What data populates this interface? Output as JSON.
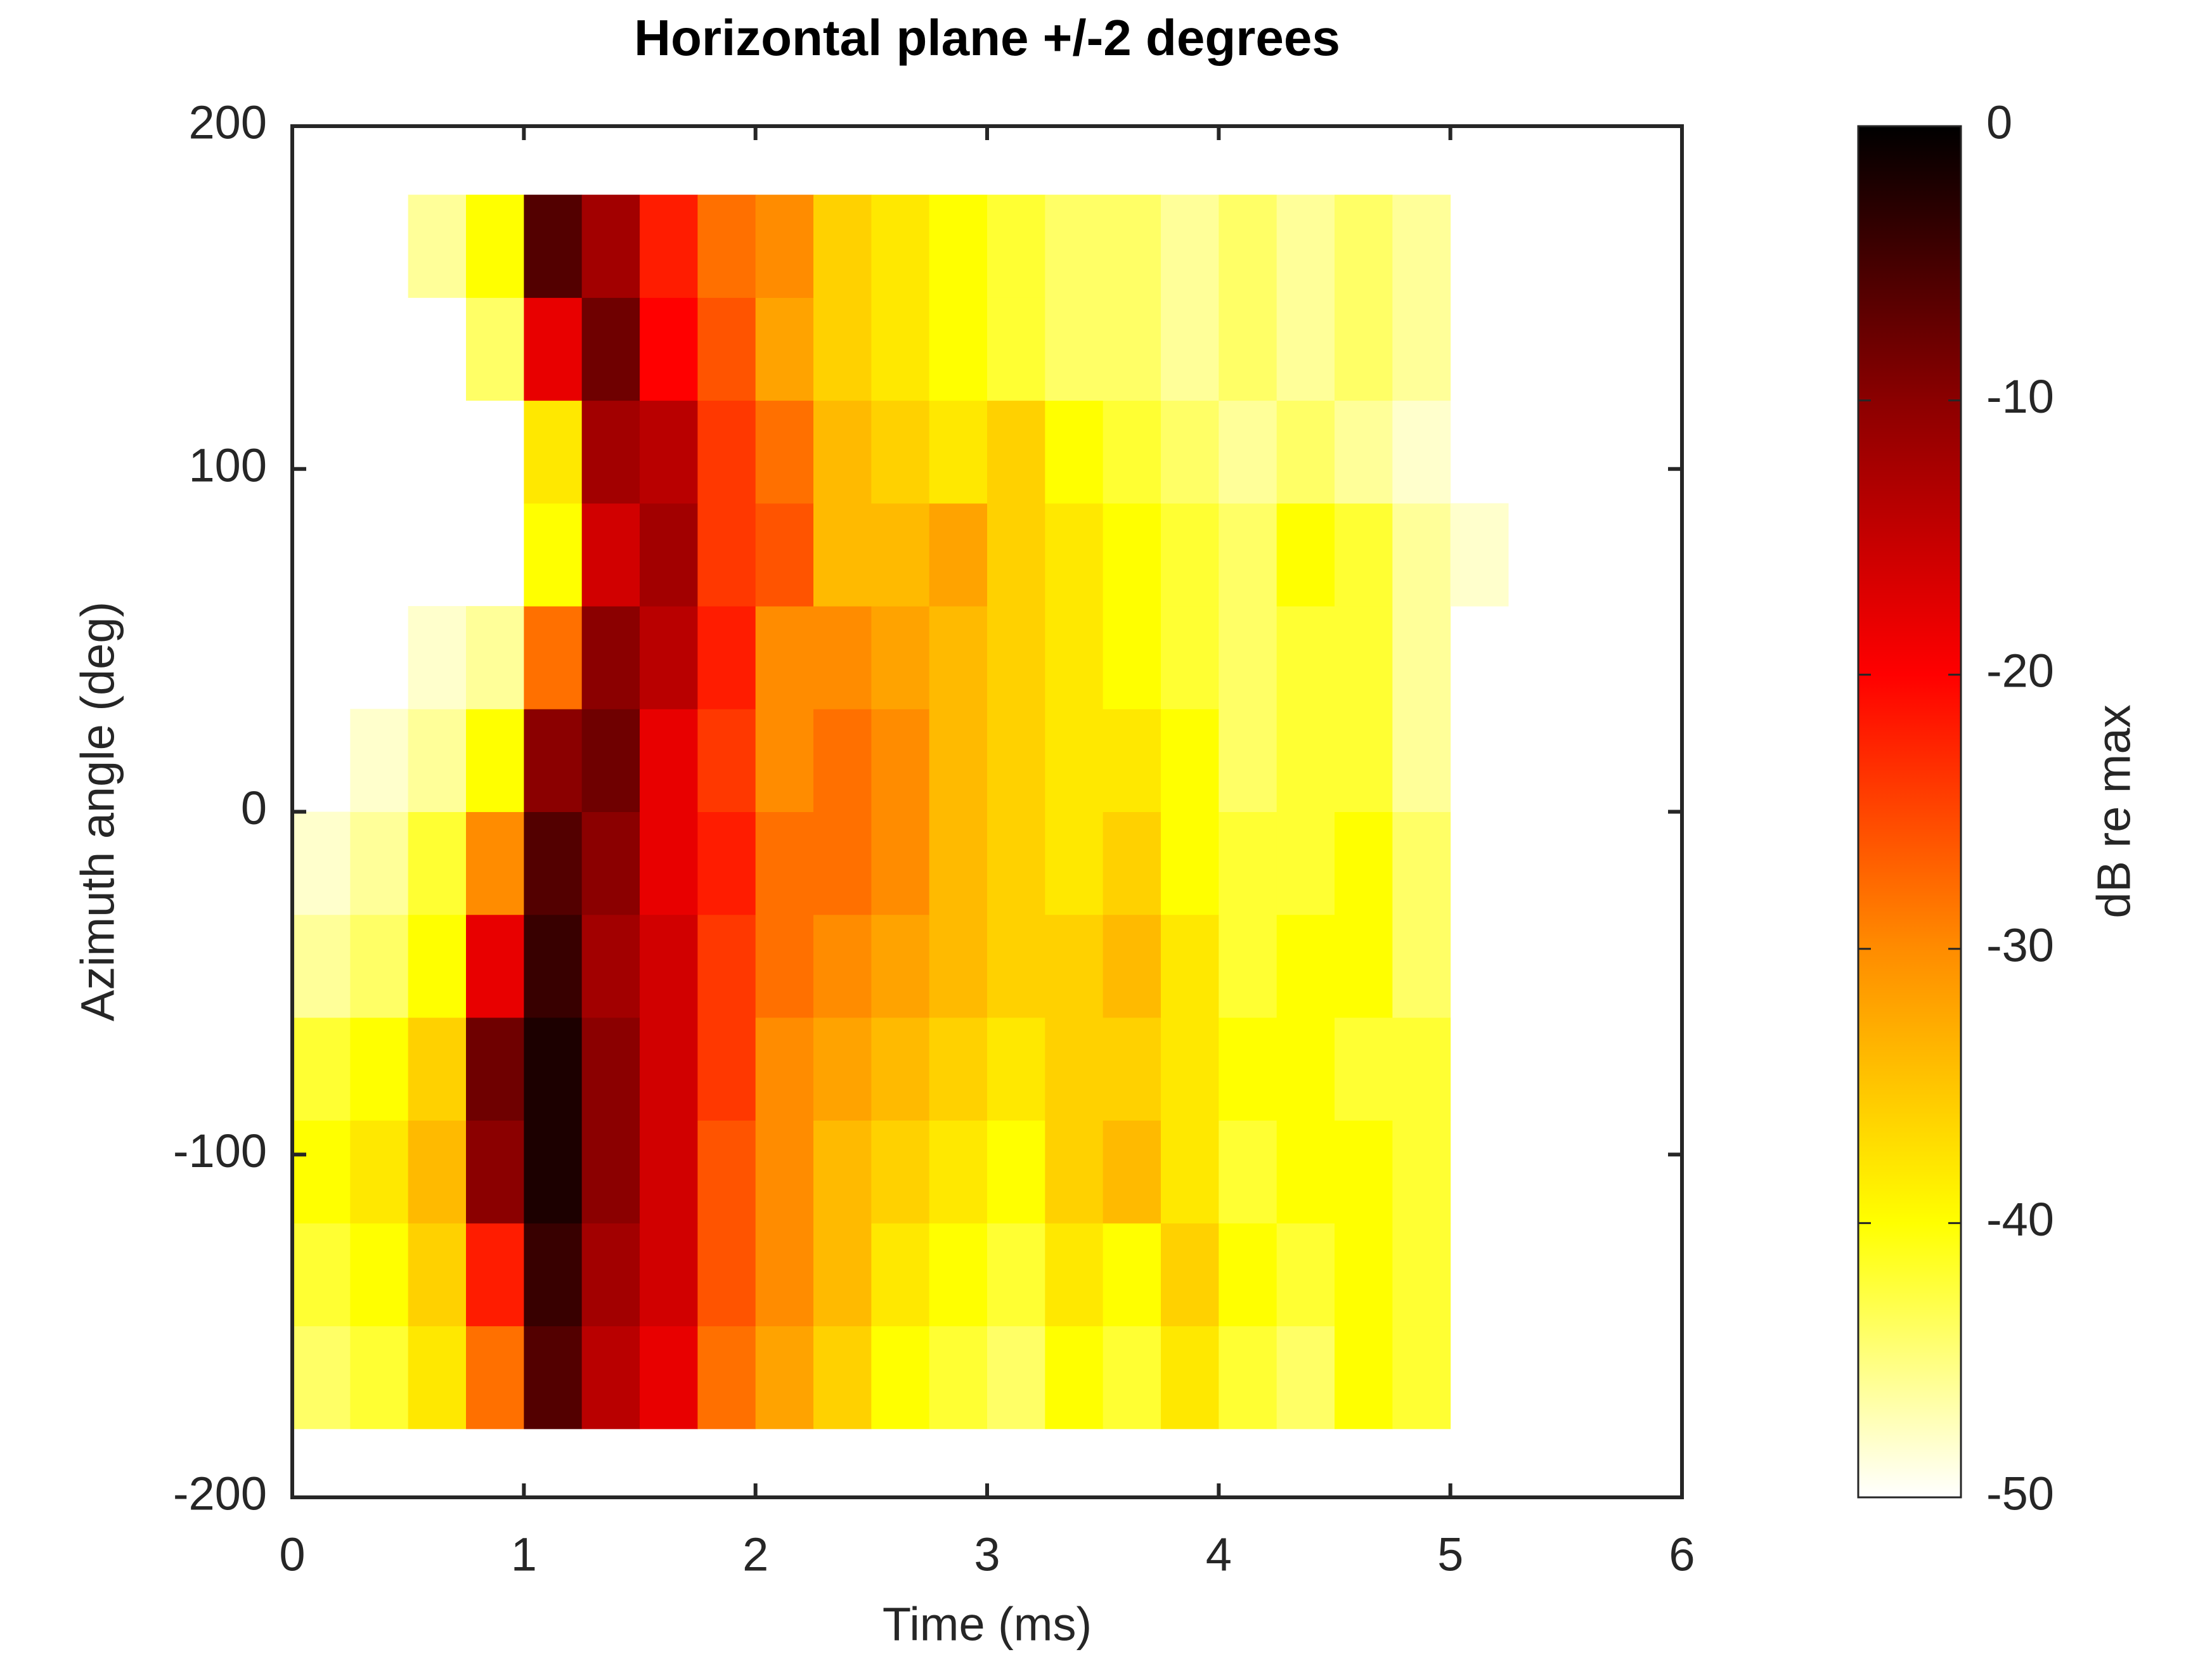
{
  "chart_data": {
    "type": "heatmap",
    "title": "Horizontal plane +/-2 degrees",
    "x_label": "Time (ms)",
    "y_label": "Azimuth angle (deg)",
    "colorbar_label": "dB re max",
    "xlim": [
      0,
      6
    ],
    "xticks": [
      0,
      1,
      2,
      3,
      4,
      5,
      6
    ],
    "ylim": [
      -200,
      200
    ],
    "yticks": [
      -200,
      -100,
      0,
      100,
      200
    ],
    "clim": [
      -50,
      0
    ],
    "cticks": [
      0,
      -10,
      -20,
      -30,
      -40,
      -50
    ],
    "colormap": [
      "#ffffff",
      "#ffff00",
      "#ff8c00",
      "#ff0000",
      "#8b0000",
      "#000000"
    ],
    "x": [
      0.125,
      0.375,
      0.625,
      0.875,
      1.125,
      1.375,
      1.625,
      1.875,
      2.125,
      2.375,
      2.625,
      2.875,
      3.125,
      3.375,
      3.625,
      3.875,
      4.125,
      4.375,
      4.625,
      4.875,
      5.125
    ],
    "y": [
      -165,
      -135,
      -105,
      -75,
      -45,
      -15,
      15,
      45,
      75,
      105,
      135,
      165
    ],
    "z": [
      [
        -44,
        -42,
        -38,
        -28,
        -6,
        -14,
        -18,
        -28,
        -32,
        -36,
        -40,
        -42,
        -44,
        -40,
        -42,
        -38,
        -42,
        -44,
        -40,
        -42,
        null
      ],
      [
        -42,
        -40,
        -36,
        -22,
        -4,
        -12,
        -16,
        -26,
        -30,
        -34,
        -38,
        -40,
        -42,
        -38,
        -40,
        -36,
        -40,
        -42,
        -40,
        -42,
        null
      ],
      [
        -40,
        -38,
        -34,
        -10,
        -2,
        -10,
        -16,
        -26,
        -30,
        -34,
        -36,
        -38,
        -40,
        -36,
        -34,
        -38,
        -42,
        -40,
        -40,
        -42,
        null
      ],
      [
        -42,
        -40,
        -36,
        -8,
        -2,
        -10,
        -16,
        -24,
        -30,
        -32,
        -34,
        -36,
        -38,
        -36,
        -36,
        -38,
        -40,
        -40,
        -42,
        -42,
        null
      ],
      [
        -46,
        -44,
        -40,
        -18,
        -4,
        -12,
        -16,
        -24,
        -28,
        -30,
        -32,
        -34,
        -36,
        -36,
        -34,
        -38,
        -42,
        -40,
        -40,
        -44,
        null
      ],
      [
        -48,
        -46,
        -42,
        -30,
        -6,
        -10,
        -18,
        -22,
        -28,
        -28,
        -30,
        -34,
        -36,
        -38,
        -36,
        -40,
        -42,
        -42,
        -40,
        -44,
        null
      ],
      [
        null,
        -48,
        -46,
        -40,
        -10,
        -8,
        -18,
        -24,
        -30,
        -28,
        -30,
        -34,
        -36,
        -38,
        -38,
        -40,
        -44,
        -42,
        -42,
        -46,
        null
      ],
      [
        null,
        null,
        -48,
        -46,
        -28,
        -10,
        -14,
        -22,
        -30,
        -30,
        -32,
        -34,
        -36,
        -38,
        -40,
        -42,
        -44,
        -42,
        -42,
        -46,
        null
      ],
      [
        null,
        null,
        null,
        null,
        -40,
        -16,
        -12,
        -24,
        -26,
        -34,
        -34,
        -32,
        -36,
        -38,
        -40,
        -42,
        -44,
        -40,
        -42,
        -46,
        -48
      ],
      [
        null,
        null,
        null,
        null,
        -38,
        -12,
        -14,
        -24,
        -28,
        -34,
        -36,
        -38,
        -36,
        -40,
        -42,
        -44,
        -46,
        -44,
        -46,
        -48,
        null
      ],
      [
        null,
        null,
        null,
        -44,
        -18,
        -8,
        -20,
        -26,
        -32,
        -36,
        -38,
        -40,
        -42,
        -44,
        -44,
        -46,
        -44,
        -46,
        -44,
        -46,
        null
      ],
      [
        null,
        null,
        -46,
        -40,
        -6,
        -12,
        -22,
        -28,
        -30,
        -36,
        -38,
        -40,
        -42,
        -44,
        -44,
        -46,
        -44,
        -46,
        -44,
        -46,
        null
      ]
    ]
  }
}
